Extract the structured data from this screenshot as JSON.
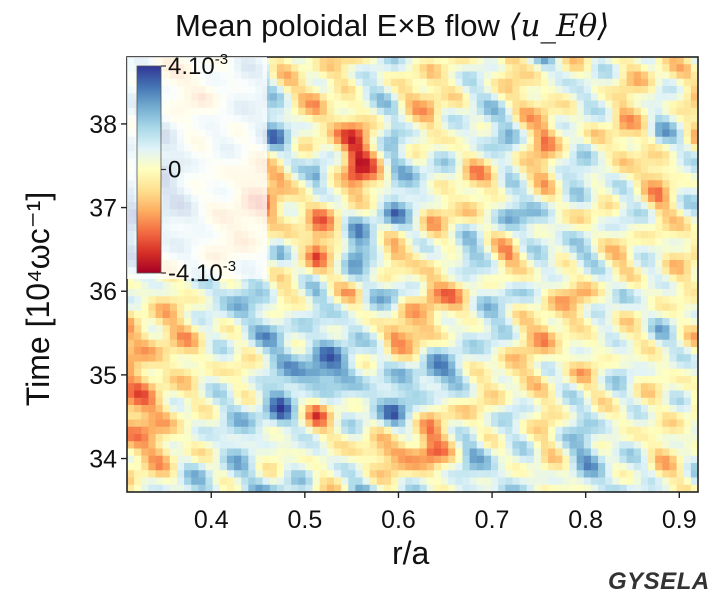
{
  "chart_data": {
    "type": "heatmap",
    "title_text": "Mean poloidal E×B flow ",
    "title_symbol": "⟨u_Eθ⟩",
    "xlabel": "r/a",
    "ylabel": "Time  [10⁴ωc⁻¹]",
    "xlim": [
      0.31,
      0.92
    ],
    "ylim": [
      33.6,
      38.8
    ],
    "xticks": [
      0.4,
      0.5,
      0.6,
      0.7,
      0.8,
      0.9
    ],
    "xtick_labels": [
      "0.4",
      "0.5",
      "0.6",
      "0.7",
      "0.8",
      "0.9"
    ],
    "yticks": [
      34,
      35,
      36,
      37,
      38
    ],
    "ytick_labels": [
      "34",
      "35",
      "36",
      "37",
      "38"
    ],
    "colorbar": {
      "min": -0.004,
      "max": 0.004,
      "ticks": [
        0.004,
        0,
        -0.004
      ],
      "tick_labels": [
        "4.10-3",
        "0",
        "-4.10-3"
      ],
      "colormap": "RdYlBu",
      "colors": [
        "#a50026",
        "#d73027",
        "#f46d43",
        "#fdae61",
        "#fee090",
        "#ffffbf",
        "#e0f3f8",
        "#abd9e9",
        "#74add1",
        "#4575b4",
        "#313695"
      ]
    },
    "field": [
      [
        0.8,
        -0.6,
        0.3,
        1.5,
        -0.4,
        0.2,
        -0.9,
        1.1,
        -0.3,
        0.6,
        -1.0,
        1.4,
        -0.4,
        0.6,
        -1.2,
        0.9
      ],
      [
        1.6,
        0.4,
        -1.3,
        1.9,
        0.6,
        -1.4,
        1.2,
        0.4,
        -1.6,
        1.3,
        -0.2,
        -0.8,
        1.5,
        -0.9,
        0.5,
        -0.7
      ],
      [
        1.2,
        1.7,
        0.5,
        0.9,
        2.2,
        -0.5,
        -2.4,
        1.6,
        -0.5,
        0.9,
        1.6,
        -1.7,
        0.8,
        -1.5,
        1.6,
        -0.5
      ],
      [
        0.9,
        2.3,
        0.6,
        -0.3,
        -1.9,
        2.8,
        -3.2,
        0.7,
        1.7,
        -1.3,
        0.2,
        -0.9,
        1.9,
        -0.2,
        -1.2,
        1.1
      ],
      [
        2.8,
        2.2,
        1.1,
        -1.7,
        -0.6,
        -1.2,
        0.6,
        2.3,
        -0.8,
        -0.6,
        1.9,
        1.2,
        -0.9,
        1.3,
        -0.6,
        0.4
      ],
      [
        1.9,
        0.8,
        0.4,
        -0.8,
        1.8,
        -2.4,
        2.9,
        -1.6,
        0.4,
        1.9,
        -1.6,
        0.9,
        1.4,
        -1.0,
        0.7,
        -1.1
      ],
      [
        0.2,
        -0.3,
        0.5,
        2.2,
        -0.7,
        1.4,
        -1.0,
        2.4,
        -2.1,
        -0.3,
        1.6,
        -0.2,
        -1.3,
        1.5,
        -0.5,
        0.6
      ],
      [
        -0.8,
        -1.0,
        -0.3,
        1.0,
        1.6,
        0.4,
        1.9,
        -2.0,
        -0.8,
        1.3,
        0.7,
        -1.8,
        1.0,
        -0.6,
        1.2,
        -0.3
      ],
      [
        -1.2,
        -0.6,
        0.3,
        -0.4,
        1.1,
        3.2,
        1.2,
        0.6,
        2.6,
        0.9,
        -1.3,
        0.6,
        -0.8,
        1.1,
        -0.4,
        0.8
      ],
      [
        -1.6,
        -1.0,
        0.7,
        0.9,
        2.6,
        -1.8,
        0.8,
        2.4,
        -0.4,
        -0.7,
        1.0,
        -0.5,
        1.2,
        -0.3,
        0.6,
        -0.7
      ],
      [
        -1.1,
        -0.8,
        0.4,
        1.3,
        -0.6,
        1.2,
        -0.6,
        -1.4,
        -2.2,
        1.6,
        0.5,
        -0.2,
        1.7,
        0.7,
        -0.5,
        0.4
      ],
      [
        -0.5,
        0.6,
        1.5,
        0.5,
        2.0,
        -0.7,
        1.6,
        0.3,
        1.0,
        0.6,
        1.4,
        -0.3,
        0.7,
        1.3,
        -0.2,
        0.5
      ]
    ]
  },
  "brand": "GYSELA"
}
